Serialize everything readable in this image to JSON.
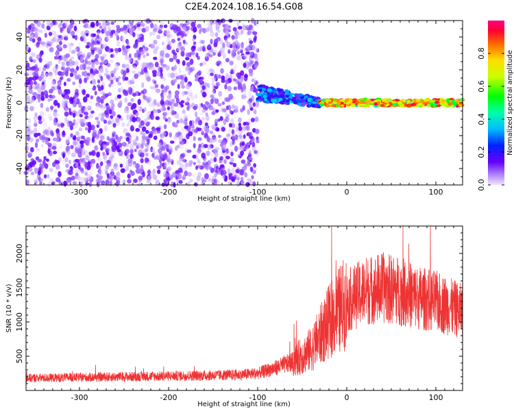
{
  "title": "C2E4.2024.108.16.54.G08",
  "chart_data": [
    {
      "type": "heatmap",
      "xlabel": "Height of straight line (km)",
      "ylabel": "Frequency (Hz)",
      "xlim": [
        -360,
        130
      ],
      "ylim": [
        -50,
        50
      ],
      "xticks": [
        -300,
        -200,
        -100,
        0,
        100
      ],
      "yticks": [
        -40,
        -20,
        0,
        20,
        40
      ],
      "colorbar": {
        "label": "Normalized spectral amplitude",
        "range": [
          0.0,
          1.0
        ],
        "ticks": [
          0.0,
          0.2,
          0.4,
          0.6,
          0.8
        ],
        "tick_labels": [
          "0.0",
          "0.2",
          "0.4",
          "0.6",
          "0.8"
        ],
        "colormap": "rainbow"
      },
      "regions": [
        {
          "x": [
            -360,
            -100
          ],
          "frequency": [
            -50,
            50
          ],
          "amplitude": [
            0.0,
            0.15
          ],
          "pattern": "broadband noise"
        },
        {
          "x": [
            -100,
            -30
          ],
          "frequency": [
            -10,
            12
          ],
          "amplitude": [
            0.1,
            0.4
          ],
          "pattern": "carrier emerging with fluctuation"
        },
        {
          "x": [
            -30,
            130
          ],
          "frequency": [
            -2,
            2
          ],
          "amplitude": [
            0.4,
            0.95
          ],
          "pattern": "narrow carrier line near 0 Hz"
        }
      ]
    },
    {
      "type": "line",
      "xlabel": "Height of straight line (km)",
      "ylabel": "SNR (10 * v/v)",
      "xlim": [
        -360,
        130
      ],
      "ylim": [
        0,
        2400
      ],
      "xticks": [
        -300,
        -200,
        -100,
        0,
        100
      ],
      "yticks": [
        500,
        1000,
        1500,
        2000
      ],
      "color": "#ee3333",
      "series": [
        {
          "x": [
            -360,
            -300,
            -250,
            -200,
            -150,
            -120,
            -100,
            -80,
            -60,
            -40,
            -30,
            -20,
            -10,
            0,
            20,
            40,
            60,
            80,
            100,
            120,
            130
          ],
          "values": [
            180,
            190,
            200,
            210,
            220,
            230,
            250,
            330,
            420,
            600,
            800,
            1000,
            1150,
            1300,
            1450,
            1500,
            1450,
            1350,
            1300,
            1200,
            1150
          ]
        }
      ]
    }
  ]
}
